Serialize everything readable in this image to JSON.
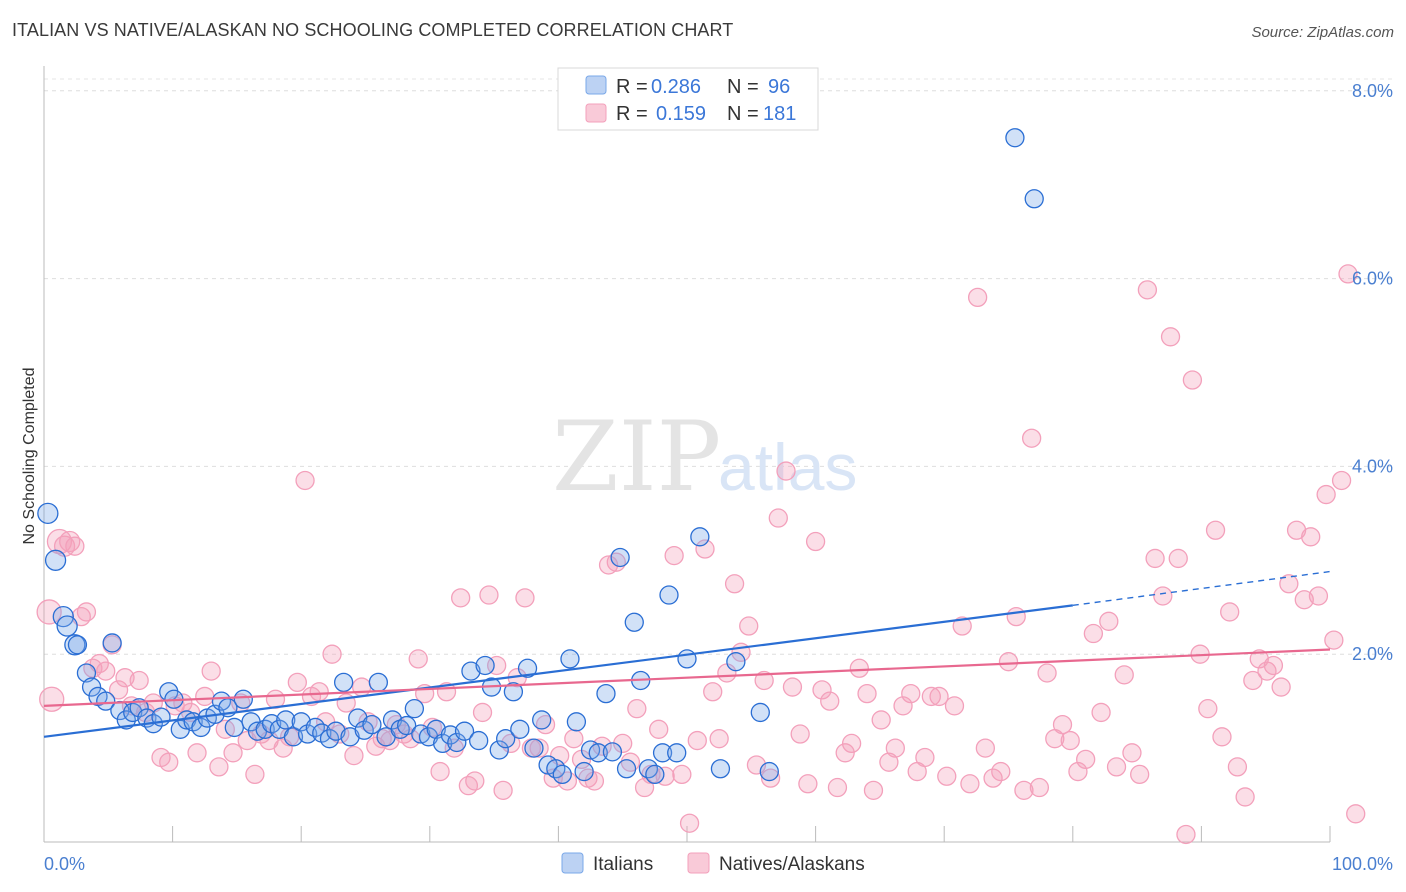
{
  "title": "ITALIAN VS NATIVE/ALASKAN NO SCHOOLING COMPLETED CORRELATION CHART",
  "source": "Source: ZipAtlas.com",
  "watermark": {
    "part1": "ZIP",
    "part2": "atlas"
  },
  "colors": {
    "italians": "#7aa8e8",
    "italians_line": "#2a6ed4",
    "natives": "#f3a0bb",
    "natives_line": "#e8688f",
    "tick": "#4a7fd0"
  },
  "legend": {
    "rows": [
      {
        "r_label": "R =",
        "r_value": "0.286",
        "n_label": "N =",
        "n_value": "96"
      },
      {
        "r_label": "R =",
        "r_value": "0.159",
        "n_label": "N =",
        "n_value": "181"
      }
    ]
  },
  "chart_data": {
    "type": "scatter",
    "title": "ITALIAN VS NATIVE/ALASKAN NO SCHOOLING COMPLETED CORRELATION CHART",
    "xlabel": "",
    "ylabel": "No Schooling Completed",
    "x_tick_labels": [
      "0.0%",
      "100.0%"
    ],
    "y_tick_labels": [
      "2.0%",
      "4.0%",
      "6.0%",
      "8.0%"
    ],
    "y_ticks": [
      2,
      4,
      6,
      8
    ],
    "xlim": [
      0,
      100
    ],
    "ylim": [
      0,
      8.2
    ],
    "grid": true,
    "legend_placement": "top-center",
    "series": [
      {
        "name": "Italians",
        "r": 0.286,
        "n": 96,
        "trend": {
          "x0": 0,
          "y0": 1.12,
          "x1": 80,
          "y1": 2.52,
          "dashed_to_x": 100,
          "dashed_to_y": 2.88
        },
        "points": [
          [
            0.3,
            3.5
          ],
          [
            0.9,
            3.0
          ],
          [
            1.5,
            2.4
          ],
          [
            1.8,
            2.3
          ],
          [
            2.4,
            2.1
          ],
          [
            2.6,
            2.1
          ],
          [
            3.3,
            1.8
          ],
          [
            3.7,
            1.65
          ],
          [
            4.2,
            1.55
          ],
          [
            4.8,
            1.5
          ],
          [
            5.3,
            2.12
          ],
          [
            5.9,
            1.4
          ],
          [
            6.4,
            1.3
          ],
          [
            6.9,
            1.38
          ],
          [
            7.4,
            1.43
          ],
          [
            8.0,
            1.32
          ],
          [
            8.5,
            1.26
          ],
          [
            9.1,
            1.33
          ],
          [
            9.7,
            1.6
          ],
          [
            10.1,
            1.52
          ],
          [
            10.6,
            1.2
          ],
          [
            11.1,
            1.3
          ],
          [
            11.6,
            1.28
          ],
          [
            12.2,
            1.22
          ],
          [
            12.7,
            1.32
          ],
          [
            13.3,
            1.36
          ],
          [
            13.8,
            1.5
          ],
          [
            14.3,
            1.43
          ],
          [
            14.8,
            1.22
          ],
          [
            15.5,
            1.52
          ],
          [
            16.1,
            1.28
          ],
          [
            16.6,
            1.18
          ],
          [
            17.2,
            1.2
          ],
          [
            17.7,
            1.26
          ],
          [
            18.3,
            1.2
          ],
          [
            18.8,
            1.3
          ],
          [
            19.4,
            1.12
          ],
          [
            20.0,
            1.28
          ],
          [
            20.5,
            1.15
          ],
          [
            21.1,
            1.22
          ],
          [
            21.6,
            1.16
          ],
          [
            22.2,
            1.1
          ],
          [
            22.7,
            1.18
          ],
          [
            23.3,
            1.7
          ],
          [
            23.8,
            1.12
          ],
          [
            24.4,
            1.32
          ],
          [
            24.9,
            1.19
          ],
          [
            25.5,
            1.25
          ],
          [
            26.0,
            1.7
          ],
          [
            26.6,
            1.12
          ],
          [
            27.1,
            1.3
          ],
          [
            27.7,
            1.2
          ],
          [
            28.2,
            1.24
          ],
          [
            28.8,
            1.42
          ],
          [
            29.3,
            1.15
          ],
          [
            29.9,
            1.12
          ],
          [
            30.5,
            1.2
          ],
          [
            31.0,
            1.05
          ],
          [
            31.6,
            1.14
          ],
          [
            32.1,
            1.06
          ],
          [
            32.7,
            1.18
          ],
          [
            33.2,
            1.82
          ],
          [
            33.8,
            1.08
          ],
          [
            34.3,
            1.88
          ],
          [
            34.8,
            1.65
          ],
          [
            35.4,
            0.98
          ],
          [
            35.9,
            1.1
          ],
          [
            36.5,
            1.6
          ],
          [
            37.0,
            1.2
          ],
          [
            37.6,
            1.85
          ],
          [
            38.1,
            1.0
          ],
          [
            38.7,
            1.3
          ],
          [
            39.2,
            0.82
          ],
          [
            39.8,
            0.78
          ],
          [
            40.3,
            0.72
          ],
          [
            40.9,
            1.95
          ],
          [
            41.4,
            1.28
          ],
          [
            42.0,
            0.75
          ],
          [
            42.5,
            0.98
          ],
          [
            43.1,
            0.95
          ],
          [
            43.7,
            1.58
          ],
          [
            44.2,
            0.96
          ],
          [
            44.8,
            3.03
          ],
          [
            45.3,
            0.78
          ],
          [
            45.9,
            2.34
          ],
          [
            46.4,
            1.72
          ],
          [
            47.0,
            0.78
          ],
          [
            47.5,
            0.72
          ],
          [
            48.1,
            0.95
          ],
          [
            48.6,
            2.63
          ],
          [
            49.2,
            0.95
          ],
          [
            50.0,
            1.95
          ],
          [
            51.0,
            3.25
          ],
          [
            52.6,
            0.78
          ],
          [
            53.8,
            1.92
          ],
          [
            55.7,
            1.38
          ],
          [
            56.4,
            0.75
          ],
          [
            75.5,
            7.5
          ],
          [
            77.0,
            6.85
          ]
        ]
      },
      {
        "name": "Natives/Alaskans",
        "r": 0.159,
        "n": 181,
        "trend": {
          "x0": 0,
          "y0": 1.45,
          "x1": 100,
          "y1": 2.05
        },
        "points": [
          [
            0.4,
            2.45
          ],
          [
            0.6,
            1.52
          ],
          [
            1.2,
            3.2
          ],
          [
            1.6,
            3.15
          ],
          [
            2.0,
            3.2
          ],
          [
            2.4,
            3.15
          ],
          [
            2.9,
            2.4
          ],
          [
            3.3,
            2.45
          ],
          [
            3.8,
            1.85
          ],
          [
            4.3,
            1.9
          ],
          [
            4.8,
            1.82
          ],
          [
            5.3,
            2.1
          ],
          [
            5.8,
            1.62
          ],
          [
            6.3,
            1.75
          ],
          [
            6.8,
            1.45
          ],
          [
            7.4,
            1.72
          ],
          [
            7.9,
            1.38
          ],
          [
            8.5,
            1.48
          ],
          [
            9.1,
            0.9
          ],
          [
            9.7,
            0.85
          ],
          [
            10.2,
            1.45
          ],
          [
            10.8,
            1.48
          ],
          [
            11.4,
            1.38
          ],
          [
            11.9,
            0.95
          ],
          [
            12.5,
            1.55
          ],
          [
            13.0,
            1.82
          ],
          [
            13.6,
            0.8
          ],
          [
            14.1,
            1.2
          ],
          [
            14.7,
            0.95
          ],
          [
            15.3,
            1.48
          ],
          [
            15.8,
            1.08
          ],
          [
            16.4,
            0.72
          ],
          [
            16.9,
            1.15
          ],
          [
            17.5,
            1.08
          ],
          [
            18.0,
            1.52
          ],
          [
            18.6,
            1.0
          ],
          [
            19.1,
            1.12
          ],
          [
            19.7,
            1.7
          ],
          [
            20.3,
            3.85
          ],
          [
            20.8,
            1.55
          ],
          [
            21.4,
            1.6
          ],
          [
            21.9,
            1.28
          ],
          [
            22.4,
            2.0
          ],
          [
            23.0,
            1.15
          ],
          [
            23.5,
            1.48
          ],
          [
            24.1,
            0.92
          ],
          [
            24.7,
            1.65
          ],
          [
            25.2,
            1.28
          ],
          [
            25.8,
            1.02
          ],
          [
            26.3,
            1.1
          ],
          [
            26.9,
            1.08
          ],
          [
            27.4,
            1.25
          ],
          [
            28.0,
            1.15
          ],
          [
            28.5,
            1.1
          ],
          [
            29.1,
            1.95
          ],
          [
            29.6,
            1.58
          ],
          [
            30.2,
            1.22
          ],
          [
            30.8,
            0.75
          ],
          [
            31.3,
            1.6
          ],
          [
            31.9,
            1.0
          ],
          [
            32.4,
            2.6
          ],
          [
            33.0,
            0.6
          ],
          [
            33.5,
            0.65
          ],
          [
            34.1,
            1.38
          ],
          [
            34.6,
            2.63
          ],
          [
            35.2,
            1.88
          ],
          [
            35.7,
            0.55
          ],
          [
            36.3,
            1.05
          ],
          [
            36.8,
            1.75
          ],
          [
            37.4,
            2.6
          ],
          [
            37.9,
            1.0
          ],
          [
            38.5,
            1.0
          ],
          [
            39.0,
            1.25
          ],
          [
            39.6,
            0.68
          ],
          [
            40.1,
            0.92
          ],
          [
            40.7,
            0.65
          ],
          [
            41.2,
            1.1
          ],
          [
            41.8,
            0.88
          ],
          [
            42.3,
            0.68
          ],
          [
            42.8,
            0.65
          ],
          [
            43.4,
            1.02
          ],
          [
            43.9,
            2.95
          ],
          [
            44.5,
            2.98
          ],
          [
            45.0,
            1.05
          ],
          [
            45.6,
            0.85
          ],
          [
            46.1,
            1.42
          ],
          [
            46.7,
            0.58
          ],
          [
            47.2,
            0.72
          ],
          [
            47.8,
            1.2
          ],
          [
            48.3,
            0.7
          ],
          [
            49.0,
            3.05
          ],
          [
            49.6,
            0.72
          ],
          [
            50.2,
            0.2
          ],
          [
            50.8,
            1.08
          ],
          [
            51.4,
            3.12
          ],
          [
            52.0,
            1.6
          ],
          [
            52.5,
            1.1
          ],
          [
            53.1,
            1.8
          ],
          [
            53.7,
            2.75
          ],
          [
            54.2,
            2.02
          ],
          [
            54.8,
            2.3
          ],
          [
            55.4,
            0.82
          ],
          [
            56.0,
            1.72
          ],
          [
            56.5,
            0.68
          ],
          [
            57.1,
            3.45
          ],
          [
            57.7,
            3.95
          ],
          [
            58.2,
            1.65
          ],
          [
            58.8,
            1.15
          ],
          [
            59.4,
            0.62
          ],
          [
            60.0,
            3.2
          ],
          [
            60.5,
            1.62
          ],
          [
            61.1,
            1.5
          ],
          [
            61.7,
            0.58
          ],
          [
            62.3,
            0.95
          ],
          [
            62.8,
            1.05
          ],
          [
            63.4,
            1.85
          ],
          [
            64.0,
            1.58
          ],
          [
            64.5,
            0.55
          ],
          [
            65.1,
            1.3
          ],
          [
            65.7,
            0.85
          ],
          [
            66.2,
            1.0
          ],
          [
            66.8,
            1.45
          ],
          [
            67.4,
            1.58
          ],
          [
            67.9,
            0.75
          ],
          [
            68.5,
            0.9
          ],
          [
            69.0,
            1.55
          ],
          [
            69.6,
            1.55
          ],
          [
            70.2,
            0.7
          ],
          [
            70.8,
            1.45
          ],
          [
            71.4,
            2.3
          ],
          [
            72.0,
            0.62
          ],
          [
            72.6,
            5.8
          ],
          [
            73.2,
            1.0
          ],
          [
            73.8,
            0.68
          ],
          [
            74.4,
            0.75
          ],
          [
            75.0,
            1.92
          ],
          [
            75.6,
            2.4
          ],
          [
            76.2,
            0.55
          ],
          [
            76.8,
            4.3
          ],
          [
            77.4,
            0.58
          ],
          [
            78.0,
            1.8
          ],
          [
            78.6,
            1.1
          ],
          [
            79.2,
            1.25
          ],
          [
            79.8,
            1.08
          ],
          [
            80.4,
            0.75
          ],
          [
            81.0,
            0.88
          ],
          [
            81.6,
            2.22
          ],
          [
            82.2,
            1.38
          ],
          [
            82.8,
            2.35
          ],
          [
            83.4,
            0.8
          ],
          [
            84.0,
            1.78
          ],
          [
            84.6,
            0.95
          ],
          [
            85.2,
            0.72
          ],
          [
            85.8,
            5.88
          ],
          [
            86.4,
            3.02
          ],
          [
            87.0,
            2.62
          ],
          [
            87.6,
            5.38
          ],
          [
            88.2,
            3.02
          ],
          [
            88.8,
            0.08
          ],
          [
            89.3,
            4.92
          ],
          [
            89.9,
            2.0
          ],
          [
            90.5,
            1.42
          ],
          [
            91.1,
            3.32
          ],
          [
            91.6,
            1.12
          ],
          [
            92.2,
            2.45
          ],
          [
            92.8,
            0.8
          ],
          [
            93.4,
            0.48
          ],
          [
            94.0,
            1.72
          ],
          [
            94.5,
            1.95
          ],
          [
            95.1,
            1.82
          ],
          [
            95.6,
            1.88
          ],
          [
            96.2,
            1.65
          ],
          [
            96.8,
            2.75
          ],
          [
            97.4,
            3.32
          ],
          [
            98.0,
            2.58
          ],
          [
            98.5,
            3.25
          ],
          [
            99.1,
            2.62
          ],
          [
            99.7,
            3.7
          ],
          [
            100.3,
            2.15
          ],
          [
            100.9,
            3.85
          ],
          [
            101.4,
            6.05
          ],
          [
            102.0,
            0.3
          ]
        ]
      }
    ]
  },
  "bottom_legend": [
    {
      "label": "Italians"
    },
    {
      "label": "Natives/Alaskans"
    }
  ]
}
